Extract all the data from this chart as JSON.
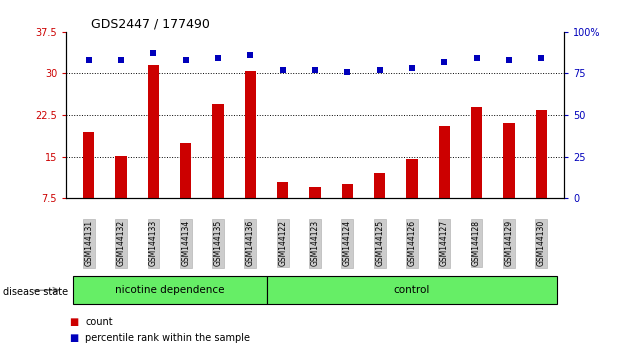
{
  "title": "GDS2447 / 177490",
  "samples": [
    "GSM144131",
    "GSM144132",
    "GSM144133",
    "GSM144134",
    "GSM144135",
    "GSM144136",
    "GSM144122",
    "GSM144123",
    "GSM144124",
    "GSM144125",
    "GSM144126",
    "GSM144127",
    "GSM144128",
    "GSM144129",
    "GSM144130"
  ],
  "counts": [
    19.5,
    15.2,
    31.5,
    17.5,
    24.5,
    30.5,
    10.5,
    9.5,
    10.0,
    12.0,
    14.5,
    20.5,
    24.0,
    21.0,
    23.5
  ],
  "percentiles": [
    83,
    83,
    87,
    83,
    84,
    86,
    77,
    77,
    76,
    77,
    78,
    82,
    84,
    83,
    84
  ],
  "ylim_left": [
    7.5,
    37.5
  ],
  "ylim_right": [
    0,
    100
  ],
  "yticks_left": [
    7.5,
    15.0,
    22.5,
    30.0,
    37.5
  ],
  "yticks_left_labels": [
    "7.5",
    "15",
    "22.5",
    "30",
    "37.5"
  ],
  "yticks_right": [
    0,
    25,
    50,
    75,
    100
  ],
  "yticks_right_labels": [
    "0",
    "25",
    "50",
    "75",
    "100%"
  ],
  "grid_lines": [
    15,
    22.5,
    30
  ],
  "bar_color": "#cc0000",
  "dot_color": "#0000bb",
  "group1_label": "nicotine dependence",
  "group2_label": "control",
  "group1_count": 6,
  "group2_count": 9,
  "group_bar_color": "#66ee66",
  "tick_bg_color": "#cccccc",
  "tick_edge_color": "#aaaaaa",
  "disease_state_label": "disease state",
  "legend_count_label": "count",
  "legend_percentile_label": "percentile rank within the sample",
  "bg_color": "#ffffff"
}
